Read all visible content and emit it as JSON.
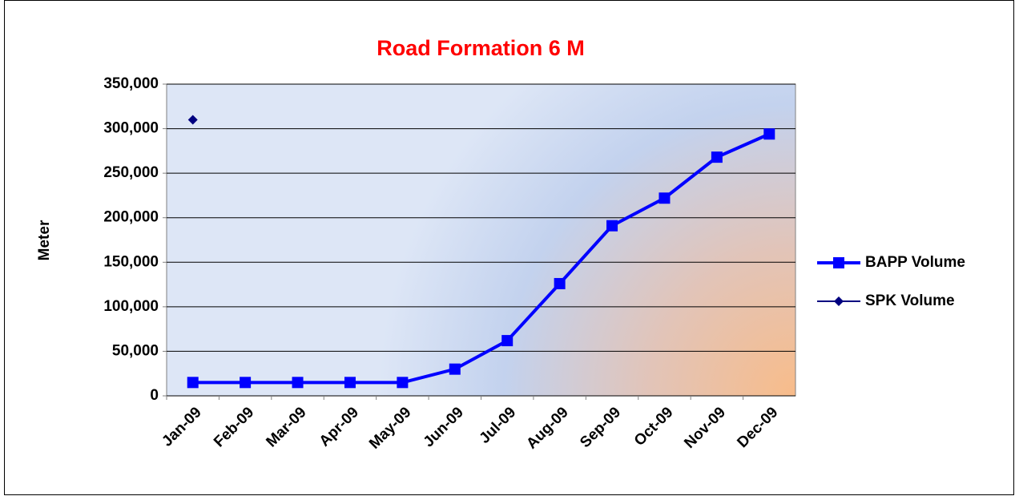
{
  "chart_data": {
    "type": "line",
    "title": "Road Formation 6 M",
    "y_label": "Meter",
    "categories": [
      "Jan-09",
      "Feb-09",
      "Mar-09",
      "Apr-09",
      "May-09",
      "Jun-09",
      "Jul-09",
      "Aug-09",
      "Sep-09",
      "Oct-09",
      "Nov-09",
      "Dec-09"
    ],
    "series": [
      {
        "name": "BAPP Volume",
        "color": "#0000ff",
        "marker": "square",
        "values": [
          15000,
          15000,
          15000,
          15000,
          15000,
          30000,
          62000,
          126000,
          191000,
          222000,
          268000,
          294000
        ]
      },
      {
        "name": "SPK Volume",
        "color": "#000080",
        "marker": "diamond",
        "values": [
          310000,
          null,
          null,
          null,
          null,
          null,
          null,
          null,
          null,
          null,
          null,
          null
        ]
      }
    ],
    "ylim": [
      0,
      350000
    ],
    "yticks": [
      0,
      {
        "value": 50000,
        "label": "50,000"
      },
      {
        "value": 100000,
        "label": "100,000"
      },
      {
        "value": 150000,
        "label": "150,000"
      },
      {
        "value": 200000,
        "label": "200,000"
      },
      {
        "value": 250000,
        "label": "250,000"
      },
      {
        "value": 300000,
        "label": "300,000"
      },
      {
        "value": 350000,
        "label": "350,000"
      }
    ],
    "grid": true,
    "legend": "right"
  }
}
